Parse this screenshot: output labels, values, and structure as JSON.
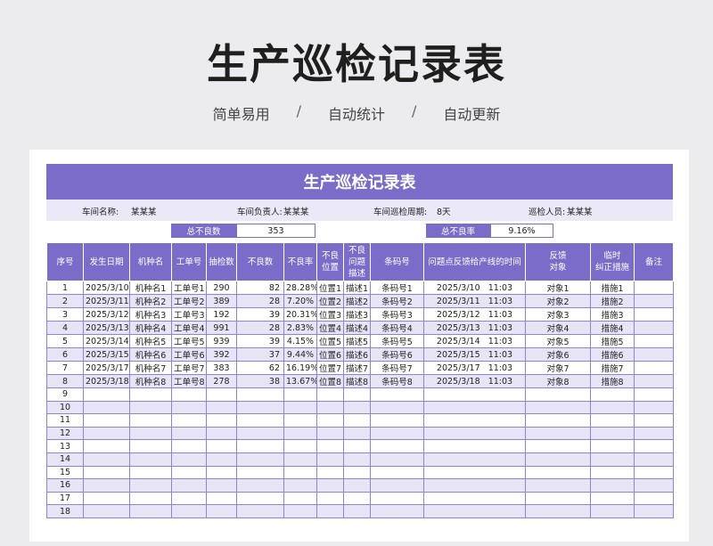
{
  "hero": {
    "title": "生产巡检记录表",
    "subtitle": [
      "简单易用",
      "自动统计",
      "自动更新"
    ],
    "separator": "/"
  },
  "sheet": {
    "banner_title": "生产巡检记录表",
    "info": {
      "workshop_label": "车间名称:",
      "workshop_value": "某某某",
      "manager_label": "车间负责人:",
      "manager_value": "某某某",
      "cycle_label": "车间巡检周期:",
      "cycle_value": "8天",
      "inspector_label": "巡检人员:",
      "inspector_value": "某某某"
    },
    "stats": {
      "total_defects_label": "总不良数",
      "total_defects_value": "353",
      "total_rate_label": "总不良率",
      "total_rate_value": "9.16%"
    },
    "columns": [
      "序号",
      "发生日期",
      "机种名",
      "工单号",
      "抽检数",
      "不良数",
      "不良率",
      "不良\n位置",
      "不良\n问题\n描述",
      "条码号",
      "问题点反馈给产线的时间",
      "反馈\n对象",
      "临时\n纠正措施",
      "备注"
    ],
    "rows": [
      [
        "1",
        "2025/3/10",
        "机种名1",
        "工单号1",
        "290",
        "82",
        "28.28%",
        "位置1",
        "描述1",
        "条码号1",
        "2025/3/10   11:03",
        "对象1",
        "措施1",
        ""
      ],
      [
        "2",
        "2025/3/11",
        "机种名2",
        "工单号2",
        "389",
        "28",
        "7.20%",
        "位置2",
        "描述2",
        "条码号2",
        "2025/3/11   11:03",
        "对象2",
        "措施2",
        ""
      ],
      [
        "3",
        "2025/3/12",
        "机种名3",
        "工单号3",
        "192",
        "39",
        "20.31%",
        "位置3",
        "描述3",
        "条码号3",
        "2025/3/12   11:03",
        "对象3",
        "措施3",
        ""
      ],
      [
        "4",
        "2025/3/13",
        "机种名4",
        "工单号4",
        "991",
        "28",
        "2.83%",
        "位置4",
        "描述4",
        "条码号4",
        "2025/3/13   11:03",
        "对象4",
        "措施4",
        ""
      ],
      [
        "5",
        "2025/3/14",
        "机种名5",
        "工单号5",
        "939",
        "39",
        "4.15%",
        "位置5",
        "描述5",
        "条码号5",
        "2025/3/14   11:03",
        "对象5",
        "措施5",
        ""
      ],
      [
        "6",
        "2025/3/15",
        "机种名6",
        "工单号6",
        "392",
        "37",
        "9.44%",
        "位置6",
        "描述6",
        "条码号6",
        "2025/3/15   11:03",
        "对象6",
        "措施6",
        ""
      ],
      [
        "7",
        "2025/3/17",
        "机种名7",
        "工单号7",
        "383",
        "62",
        "16.19%",
        "位置7",
        "描述7",
        "条码号7",
        "2025/3/17   11:03",
        "对象7",
        "措施7",
        ""
      ],
      [
        "8",
        "2025/3/18",
        "机种名8",
        "工单号8",
        "278",
        "38",
        "13.67%",
        "位置8",
        "描述8",
        "条码号8",
        "2025/3/18   11:03",
        "对象8",
        "措施8",
        ""
      ],
      [
        "9",
        "",
        "",
        "",
        "",
        "",
        "",
        "",
        "",
        "",
        "",
        "",
        "",
        ""
      ],
      [
        "10",
        "",
        "",
        "",
        "",
        "",
        "",
        "",
        "",
        "",
        "",
        "",
        "",
        ""
      ],
      [
        "11",
        "",
        "",
        "",
        "",
        "",
        "",
        "",
        "",
        "",
        "",
        "",
        "",
        ""
      ],
      [
        "12",
        "",
        "",
        "",
        "",
        "",
        "",
        "",
        "",
        "",
        "",
        "",
        "",
        ""
      ],
      [
        "13",
        "",
        "",
        "",
        "",
        "",
        "",
        "",
        "",
        "",
        "",
        "",
        "",
        ""
      ],
      [
        "14",
        "",
        "",
        "",
        "",
        "",
        "",
        "",
        "",
        "",
        "",
        "",
        "",
        ""
      ],
      [
        "15",
        "",
        "",
        "",
        "",
        "",
        "",
        "",
        "",
        "",
        "",
        "",
        "",
        ""
      ],
      [
        "16",
        "",
        "",
        "",
        "",
        "",
        "",
        "",
        "",
        "",
        "",
        "",
        "",
        ""
      ],
      [
        "17",
        "",
        "",
        "",
        "",
        "",
        "",
        "",
        "",
        "",
        "",
        "",
        "",
        ""
      ],
      [
        "18",
        "",
        "",
        "",
        "",
        "",
        "",
        "",
        "",
        "",
        "",
        "",
        "",
        ""
      ]
    ]
  },
  "colors": {
    "accent": "#7c6cc9",
    "row_alt": "#e7e4f6",
    "info_bg": "#ebe8f8"
  }
}
